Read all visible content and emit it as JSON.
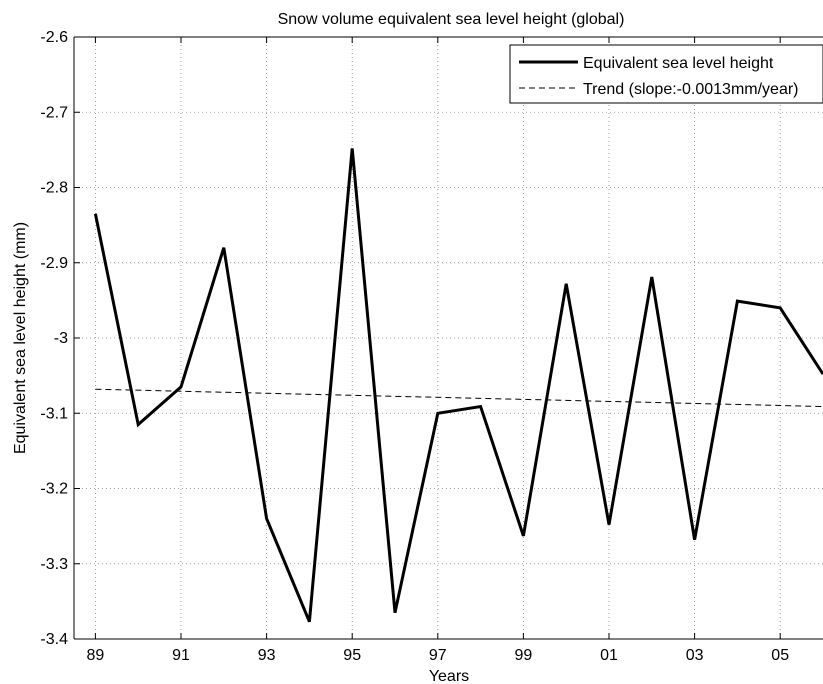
{
  "chart_data": {
    "type": "line",
    "title": "Snow volume equivalent sea level height (global)",
    "xlabel": "Years",
    "ylabel": "Equivalent sea level height (mm)",
    "xlim": [
      1988.5,
      2006
    ],
    "ylim": [
      -3.4,
      -2.6
    ],
    "grid": true,
    "legend_position": "top-right",
    "x_ticks": [
      {
        "value": 1989,
        "label": "89"
      },
      {
        "value": 1991,
        "label": "91"
      },
      {
        "value": 1993,
        "label": "93"
      },
      {
        "value": 1995,
        "label": "95"
      },
      {
        "value": 1997,
        "label": "97"
      },
      {
        "value": 1999,
        "label": "99"
      },
      {
        "value": 2001,
        "label": "01"
      },
      {
        "value": 2003,
        "label": "03"
      },
      {
        "value": 2005,
        "label": "05"
      }
    ],
    "y_ticks": [
      {
        "value": -2.6,
        "label": "-2.6"
      },
      {
        "value": -2.7,
        "label": "-2.7"
      },
      {
        "value": -2.8,
        "label": "-2.8"
      },
      {
        "value": -2.9,
        "label": "-2.9"
      },
      {
        "value": -3.0,
        "label": "-3"
      },
      {
        "value": -3.1,
        "label": "-3.1"
      },
      {
        "value": -3.2,
        "label": "-3.2"
      },
      {
        "value": -3.3,
        "label": "-3.3"
      },
      {
        "value": -3.4,
        "label": "-3.4"
      }
    ],
    "series": [
      {
        "name": "Equivalent sea level height",
        "style": "solid",
        "color": "#000000",
        "x": [
          1989,
          1990,
          1991,
          1992,
          1993,
          1994,
          1995,
          1996,
          1997,
          1998,
          1999,
          2000,
          2001,
          2002,
          2003,
          2004,
          2005,
          2006
        ],
        "y": [
          -2.835,
          -3.115,
          -3.065,
          -2.88,
          -3.24,
          -3.377,
          -2.748,
          -3.365,
          -3.1,
          -3.091,
          -3.263,
          -2.928,
          -3.248,
          -2.919,
          -3.268,
          -2.951,
          -2.96,
          -3.048
        ]
      },
      {
        "name": "Trend (slope:-0.0013mm/year)",
        "style": "dashed",
        "color": "#000000",
        "x": [
          1989,
          2006
        ],
        "y": [
          -3.068,
          -3.091
        ]
      }
    ]
  }
}
